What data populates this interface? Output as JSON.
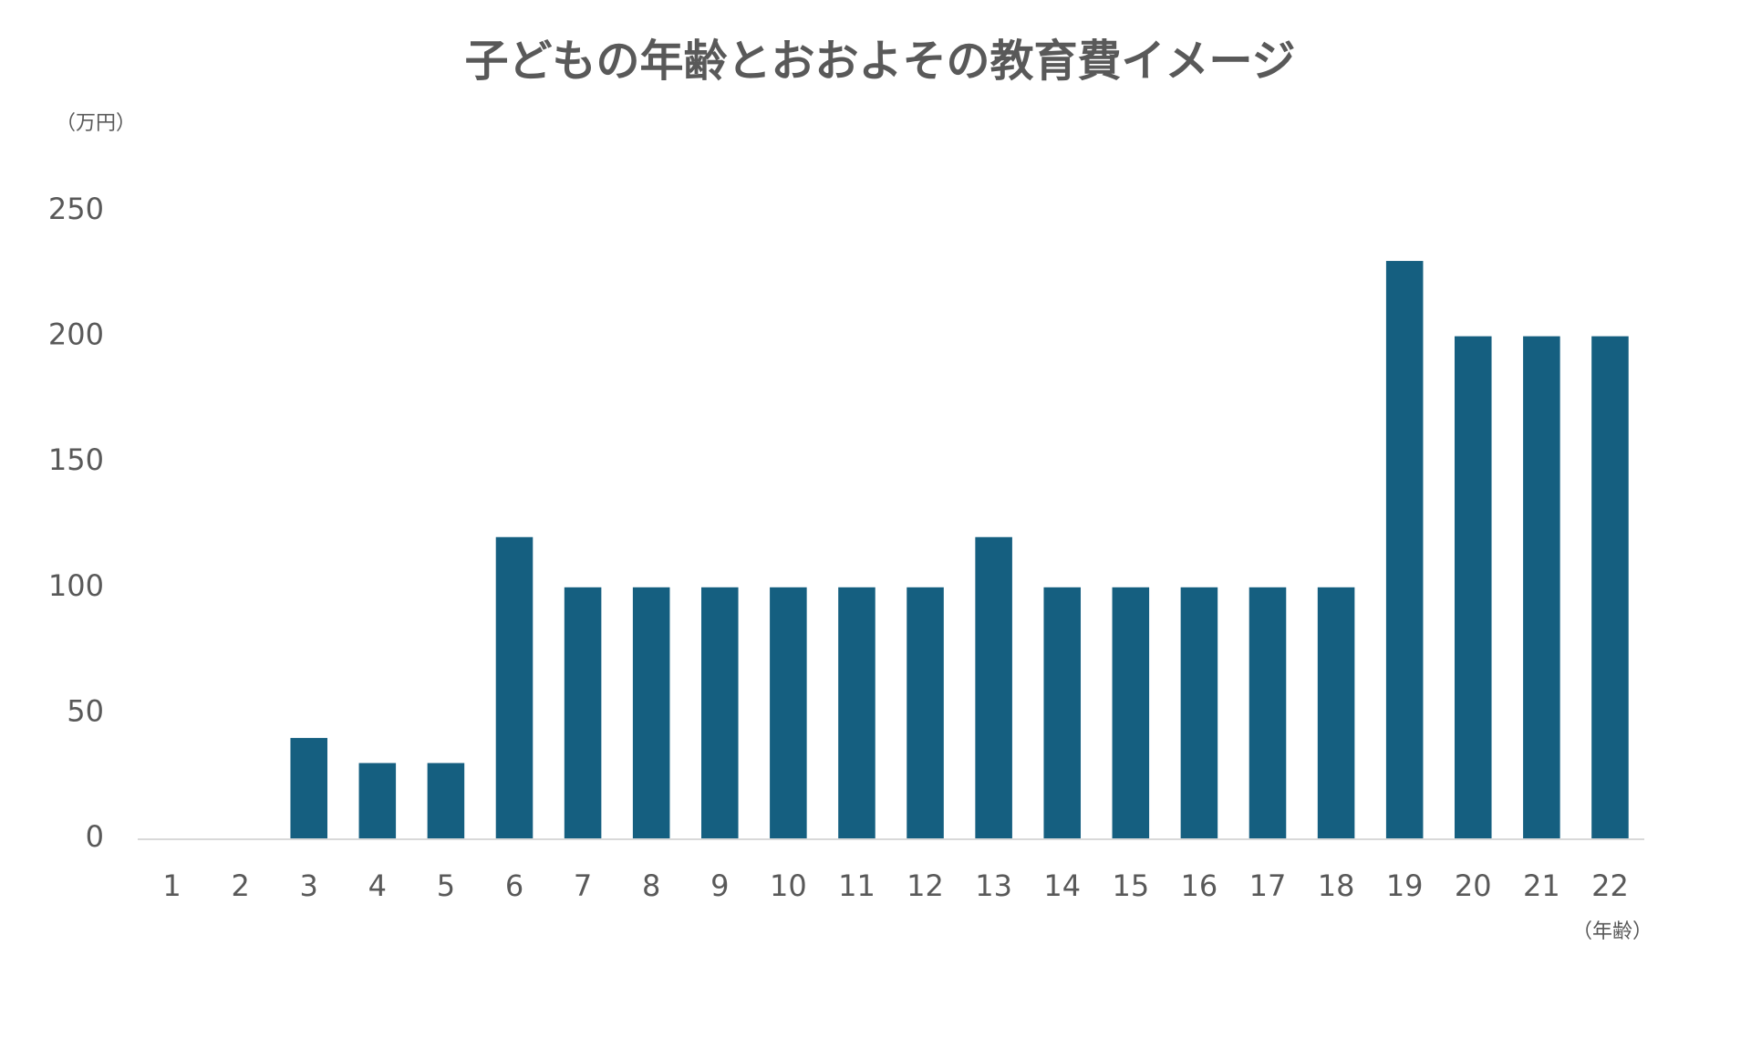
{
  "chart_data": {
    "type": "bar",
    "title": "子どもの年齢とおおよその教育費イメージ",
    "y_unit": "（万円）",
    "x_unit": "（年齢）",
    "categories": [
      "1",
      "2",
      "3",
      "4",
      "5",
      "6",
      "7",
      "8",
      "9",
      "10",
      "11",
      "12",
      "13",
      "14",
      "15",
      "16",
      "17",
      "18",
      "19",
      "20",
      "21",
      "22"
    ],
    "values": [
      0,
      0,
      40,
      30,
      30,
      120,
      100,
      100,
      100,
      100,
      100,
      100,
      120,
      100,
      100,
      100,
      100,
      100,
      230,
      200,
      200,
      200
    ],
    "color": "#155f80",
    "ylim": [
      0,
      250
    ],
    "yticks": [
      0,
      50,
      100,
      150,
      200,
      250
    ],
    "grid": false
  }
}
